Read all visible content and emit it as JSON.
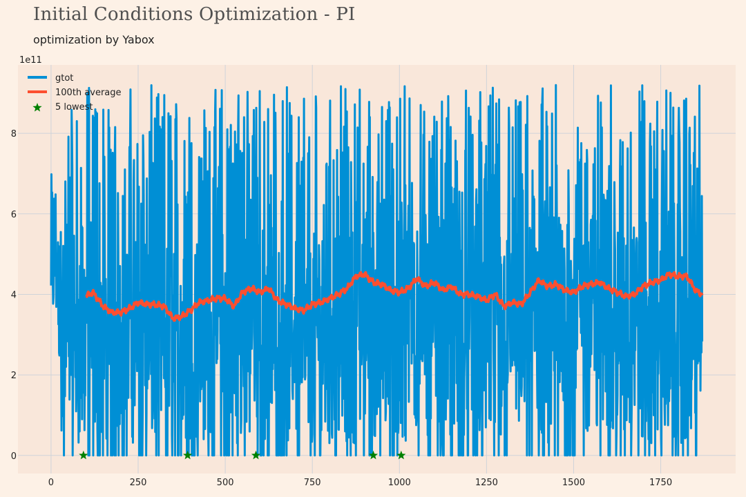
{
  "header": {
    "title": "Initial Conditions Optimization - PI",
    "subtitle": "optimization by Yabox"
  },
  "colors": {
    "background": "#fdf1e6",
    "plot_background": "#f9e7da",
    "grid": "#cfd3d9",
    "gtot": "#008fd5",
    "average": "#fc4f30",
    "lowest": "#008000"
  },
  "chart_data": {
    "type": "line",
    "title": "Initial Conditions Optimization - PI",
    "subtitle": "optimization by Yabox",
    "xlabel": "",
    "ylabel": "",
    "y_offset_label": "1e11",
    "xlim": [
      -95,
      1965
    ],
    "ylim": [
      -0.45,
      9.7
    ],
    "xticks": [
      0,
      250,
      500,
      750,
      1000,
      1250,
      1500,
      1750
    ],
    "yticks": [
      0,
      2,
      4,
      6,
      8
    ],
    "grid": true,
    "legend_position": "top-left",
    "series": [
      {
        "name": "gtot",
        "kind": "line",
        "n_points": 1870,
        "x_range": [
          0,
          1869
        ],
        "value_range": [
          0,
          9.25
        ],
        "note_values": "noisy envelope between ~0 and ~9.2 (x 1e11)"
      },
      {
        "name": "100th average",
        "kind": "line",
        "points": [
          [
            99,
            3.95
          ],
          [
            120,
            4.05
          ],
          [
            150,
            3.7
          ],
          [
            175,
            3.55
          ],
          [
            200,
            3.55
          ],
          [
            225,
            3.65
          ],
          [
            250,
            3.8
          ],
          [
            275,
            3.75
          ],
          [
            300,
            3.75
          ],
          [
            325,
            3.7
          ],
          [
            350,
            3.4
          ],
          [
            375,
            3.45
          ],
          [
            400,
            3.6
          ],
          [
            425,
            3.8
          ],
          [
            450,
            3.85
          ],
          [
            475,
            3.9
          ],
          [
            500,
            3.9
          ],
          [
            525,
            3.7
          ],
          [
            550,
            4.05
          ],
          [
            575,
            4.15
          ],
          [
            600,
            4.05
          ],
          [
            625,
            4.15
          ],
          [
            650,
            3.85
          ],
          [
            675,
            3.75
          ],
          [
            700,
            3.65
          ],
          [
            725,
            3.6
          ],
          [
            750,
            3.75
          ],
          [
            775,
            3.8
          ],
          [
            800,
            3.9
          ],
          [
            825,
            4.0
          ],
          [
            850,
            4.15
          ],
          [
            875,
            4.45
          ],
          [
            900,
            4.5
          ],
          [
            925,
            4.3
          ],
          [
            950,
            4.25
          ],
          [
            975,
            4.1
          ],
          [
            1000,
            4.05
          ],
          [
            1025,
            4.15
          ],
          [
            1050,
            4.4
          ],
          [
            1075,
            4.2
          ],
          [
            1100,
            4.3
          ],
          [
            1125,
            4.1
          ],
          [
            1150,
            4.2
          ],
          [
            1175,
            4.0
          ],
          [
            1200,
            4.0
          ],
          [
            1225,
            3.95
          ],
          [
            1250,
            3.85
          ],
          [
            1275,
            4.0
          ],
          [
            1300,
            3.7
          ],
          [
            1325,
            3.8
          ],
          [
            1350,
            3.75
          ],
          [
            1375,
            4.05
          ],
          [
            1400,
            4.35
          ],
          [
            1425,
            4.2
          ],
          [
            1450,
            4.25
          ],
          [
            1475,
            4.1
          ],
          [
            1500,
            4.05
          ],
          [
            1525,
            4.2
          ],
          [
            1550,
            4.25
          ],
          [
            1575,
            4.3
          ],
          [
            1600,
            4.15
          ],
          [
            1625,
            4.05
          ],
          [
            1650,
            3.95
          ],
          [
            1675,
            4.0
          ],
          [
            1700,
            4.2
          ],
          [
            1725,
            4.3
          ],
          [
            1750,
            4.35
          ],
          [
            1775,
            4.5
          ],
          [
            1800,
            4.45
          ],
          [
            1825,
            4.45
          ],
          [
            1850,
            4.1
          ],
          [
            1869,
            4.0
          ]
        ]
      },
      {
        "name": "5 lowest",
        "kind": "scatter",
        "marker": "star",
        "points": [
          [
            93,
            0.0
          ],
          [
            392,
            0.0
          ],
          [
            588,
            0.0
          ],
          [
            925,
            0.0
          ],
          [
            1005,
            0.0
          ]
        ]
      }
    ]
  }
}
